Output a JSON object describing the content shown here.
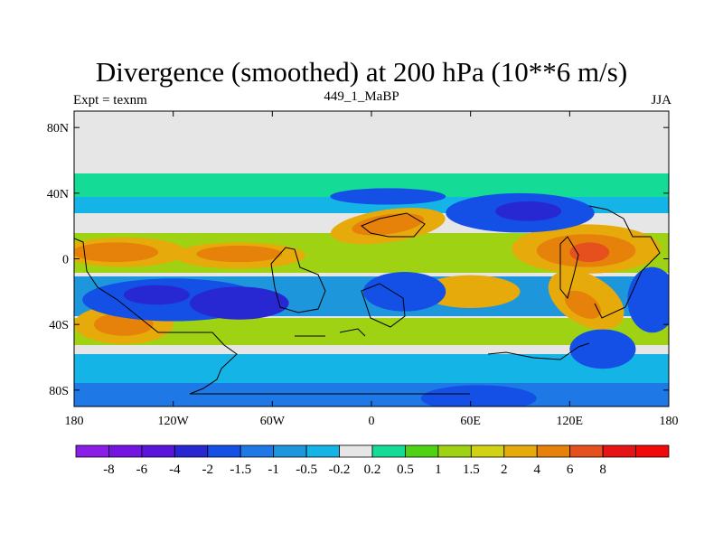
{
  "chart_data": {
    "type": "heatmap",
    "title": "Divergence (smoothed) at 200 hPa (10**6 m/s)",
    "left_label": "Expt = texnm",
    "center_label": "449_1_MaBP",
    "right_label": "JJA",
    "x_ticks": [
      {
        "value": -180,
        "label": "180"
      },
      {
        "value": -120,
        "label": "120W"
      },
      {
        "value": -60,
        "label": "60W"
      },
      {
        "value": 0,
        "label": "0"
      },
      {
        "value": 60,
        "label": "60E"
      },
      {
        "value": 120,
        "label": "120E"
      },
      {
        "value": 180,
        "label": "180"
      }
    ],
    "y_ticks": [
      {
        "value": 80,
        "label": "80N"
      },
      {
        "value": 40,
        "label": "40N"
      },
      {
        "value": 0,
        "label": "0"
      },
      {
        "value": -40,
        "label": "40S"
      },
      {
        "value": -80,
        "label": "80S"
      }
    ],
    "xlim": [
      -180,
      180
    ],
    "ylim": [
      -90,
      90
    ],
    "colorbar": {
      "colors": [
        "#8a1ee6",
        "#7314e1",
        "#5a14dc",
        "#2828d2",
        "#1450e6",
        "#1e78e6",
        "#1e96dc",
        "#14b4e6",
        "#e6e6e6",
        "#14dc96",
        "#50d214",
        "#a0d214",
        "#d2d214",
        "#e6aa0a",
        "#e6820a",
        "#e6501e",
        "#e61414",
        "#f00a0a"
      ],
      "labels": [
        "-8",
        "-6",
        "-4",
        "-2",
        "-1.5",
        "-1",
        "-0.5",
        "-0.2",
        "0.2",
        "0.5",
        "1",
        "1.5",
        "2",
        "4",
        "6",
        "8"
      ]
    },
    "fields": [
      {
        "level": 1,
        "lon": -150,
        "lat": 4,
        "rx": 38,
        "ry": 9,
        "angle": 0
      },
      {
        "level": 1,
        "lon": -80,
        "lat": 2,
        "rx": 40,
        "ry": 8,
        "angle": 0
      },
      {
        "level": 2,
        "lon": -155,
        "lat": 4,
        "rx": 26,
        "ry": 6,
        "angle": 0
      },
      {
        "level": 2,
        "lon": -80,
        "lat": 3,
        "rx": 26,
        "ry": 5,
        "angle": 0
      },
      {
        "level": 1,
        "lon": 10,
        "lat": 20,
        "rx": 35,
        "ry": 10,
        "angle": -8
      },
      {
        "level": 2,
        "lon": 10,
        "lat": 21,
        "rx": 22,
        "ry": 6,
        "angle": -8
      },
      {
        "level": 1,
        "lon": 130,
        "lat": 6,
        "rx": 45,
        "ry": 15,
        "angle": 0
      },
      {
        "level": 2,
        "lon": 130,
        "lat": 5,
        "rx": 30,
        "ry": 10,
        "angle": 0
      },
      {
        "level": 3,
        "lon": 132,
        "lat": 4,
        "rx": 12,
        "ry": 6,
        "angle": 0
      },
      {
        "level": 1,
        "lon": -150,
        "lat": -40,
        "rx": 30,
        "ry": 12,
        "angle": 0
      },
      {
        "level": 2,
        "lon": -150,
        "lat": -40,
        "rx": 18,
        "ry": 7,
        "angle": 0
      },
      {
        "level": 1,
        "lon": 130,
        "lat": -25,
        "rx": 25,
        "ry": 15,
        "angle": 30
      },
      {
        "level": 2,
        "lon": 128,
        "lat": -28,
        "rx": 12,
        "ry": 7,
        "angle": 30
      },
      {
        "level": 1,
        "lon": 60,
        "lat": -20,
        "rx": 30,
        "ry": 10,
        "angle": 0
      },
      {
        "level": -1,
        "lon": -120,
        "lat": -25,
        "rx": 55,
        "ry": 13,
        "angle": 0
      },
      {
        "level": -2,
        "lon": -80,
        "lat": -27,
        "rx": 30,
        "ry": 10,
        "angle": 0
      },
      {
        "level": -2,
        "lon": -130,
        "lat": -22,
        "rx": 20,
        "ry": 6,
        "angle": 0
      },
      {
        "level": -1,
        "lon": 20,
        "lat": -20,
        "rx": 25,
        "ry": 12,
        "angle": 0
      },
      {
        "level": -1,
        "lon": 90,
        "lat": 28,
        "rx": 45,
        "ry": 12,
        "angle": 0
      },
      {
        "level": -2,
        "lon": 95,
        "lat": 29,
        "rx": 20,
        "ry": 6,
        "angle": 0
      },
      {
        "level": -1,
        "lon": 170,
        "lat": -25,
        "rx": 15,
        "ry": 20,
        "angle": 0
      },
      {
        "level": -1,
        "lon": 140,
        "lat": -55,
        "rx": 20,
        "ry": 12,
        "angle": 0
      },
      {
        "level": -1,
        "lon": 65,
        "lat": -85,
        "rx": 35,
        "ry": 8,
        "angle": 0
      },
      {
        "level": -1,
        "lon": 10,
        "lat": 38,
        "rx": 35,
        "ry": 5,
        "angle": 0
      }
    ]
  }
}
